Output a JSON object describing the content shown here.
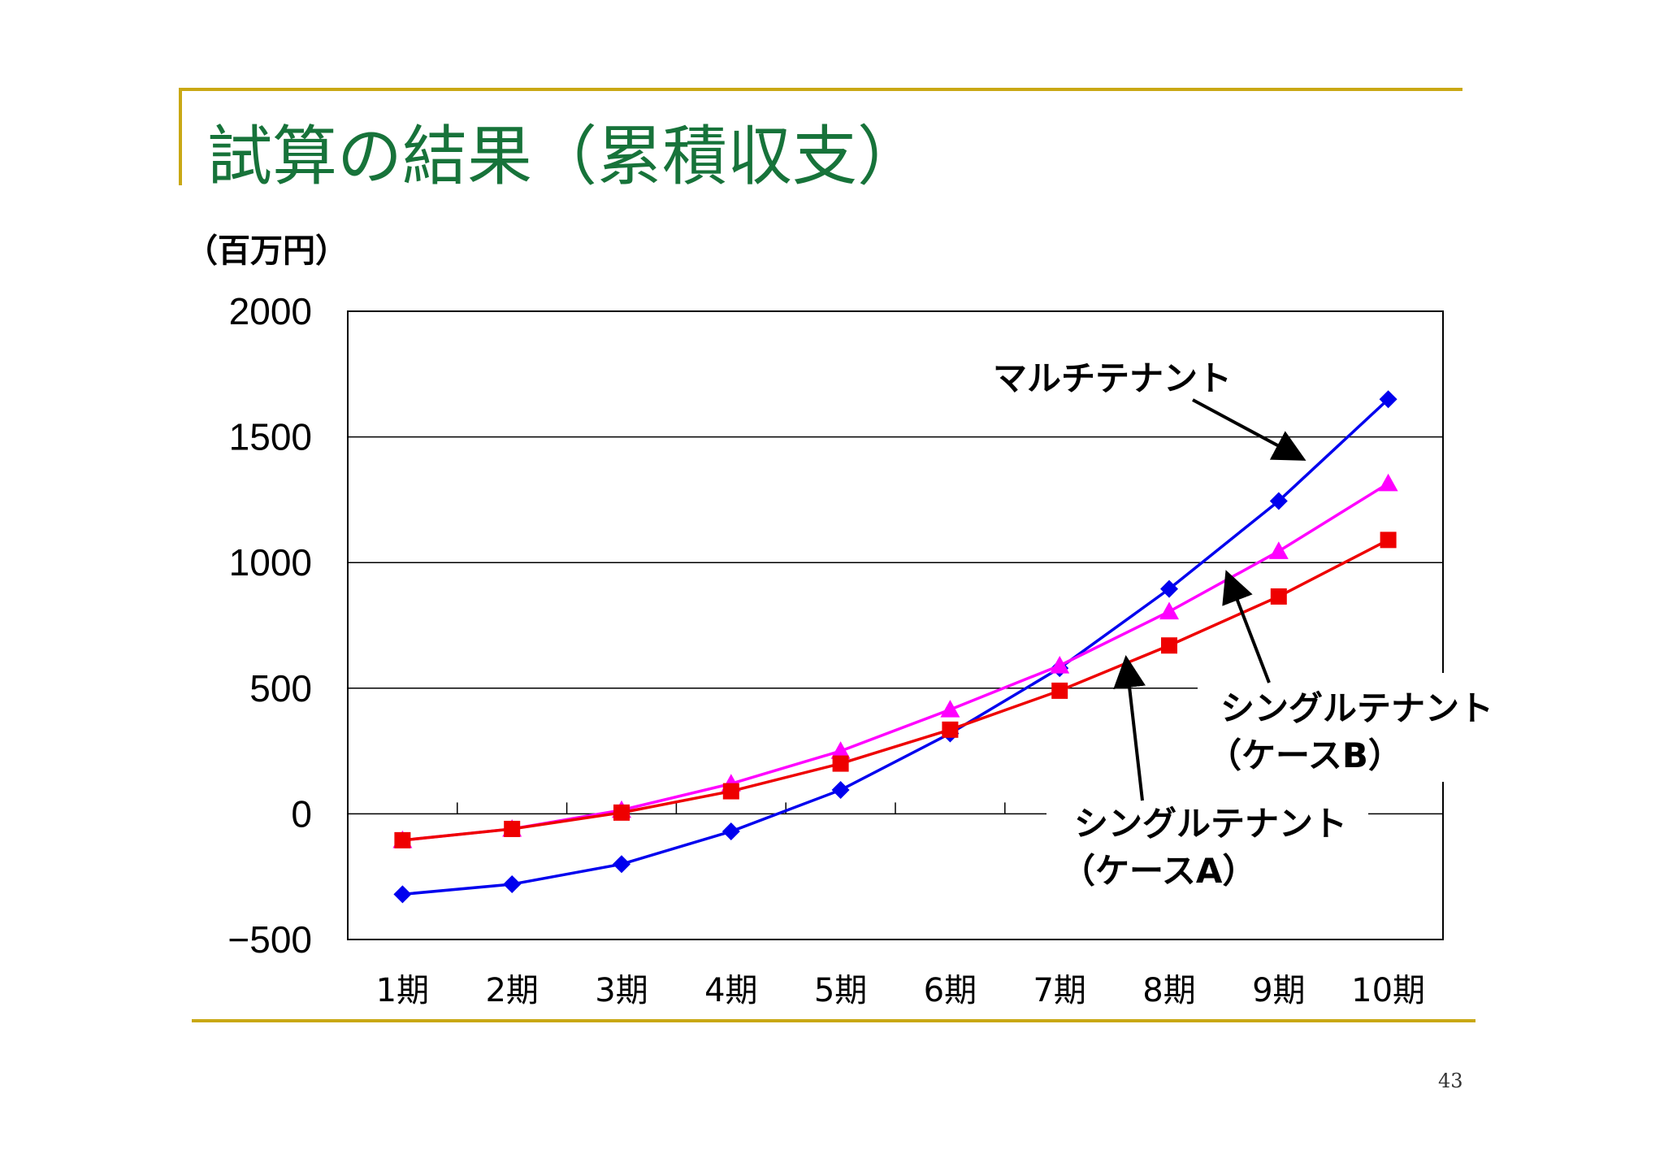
{
  "page": {
    "title": "試算の結果（累積収支）",
    "unit_label": "（百万円）",
    "page_number": "43"
  },
  "colors": {
    "accent_rule": "#c9a814",
    "title": "#17733a",
    "multi": "#0000ee",
    "single_b": "#ff00ff",
    "single_a": "#ee0000"
  },
  "chart_data": {
    "type": "line",
    "categories": [
      "1期",
      "2期",
      "3期",
      "4期",
      "5期",
      "6期",
      "7期",
      "8期",
      "9期",
      "10期"
    ],
    "ylim": [
      -500,
      2000
    ],
    "yticks": [
      "-500",
      "0",
      "500",
      "1000",
      "1500",
      "2000"
    ],
    "ylabel": "（百万円）",
    "series": [
      {
        "name": "マルチテナント",
        "marker": "diamond",
        "color": "#0000ee",
        "values": [
          -320,
          -280,
          -200,
          -70,
          95,
          320,
          580,
          895,
          1245,
          1650
        ]
      },
      {
        "name": "シングルテナント（ケースB）",
        "marker": "triangle",
        "color": "#ff00ff",
        "values": [
          -105,
          -60,
          15,
          120,
          250,
          415,
          590,
          805,
          1045,
          1315
        ]
      },
      {
        "name": "シングルテナント（ケースA）",
        "marker": "square",
        "color": "#ee0000",
        "values": [
          -105,
          -60,
          5,
          90,
          200,
          335,
          490,
          670,
          865,
          1090
        ]
      }
    ],
    "annotations": [
      {
        "name": "multi",
        "lines": [
          "マルチテナント"
        ]
      },
      {
        "name": "single-b",
        "lines": [
          "シングルテナント",
          "（ケースB）"
        ]
      },
      {
        "name": "single-a",
        "lines": [
          "シングルテナント",
          "（ケースA）"
        ]
      }
    ]
  }
}
